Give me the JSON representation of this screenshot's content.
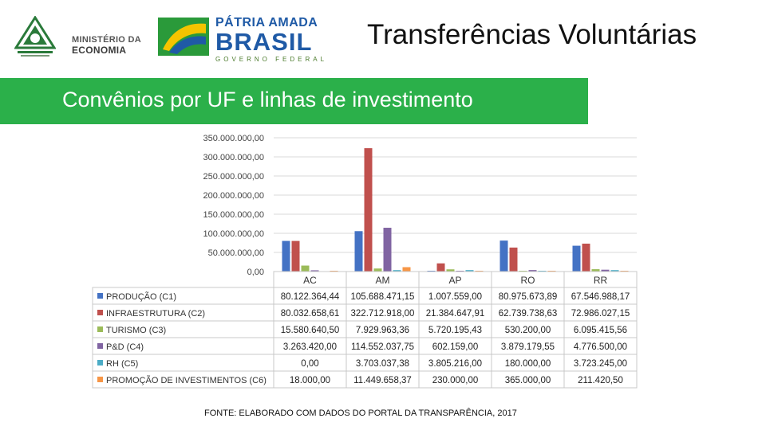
{
  "header": {
    "ministry_line1": "MINISTÉRIO DA",
    "ministry_line2": "ECONOMIA",
    "gov_line1": "PÁTRIA AMADA",
    "gov_line2": "BRASIL",
    "gov_line3": "GOVERNO FEDERAL",
    "title": "Transferências Voluntárias"
  },
  "banner": {
    "text": "Convênios por UF e linhas de investimento"
  },
  "colors": {
    "banner": "#2bb04a",
    "series": [
      "#4472c4",
      "#c0504d",
      "#9bbb59",
      "#8064a2",
      "#4bacc6",
      "#f79646"
    ]
  },
  "chart_data": {
    "type": "bar",
    "categories": [
      "AC",
      "AM",
      "AP",
      "RO",
      "RR"
    ],
    "ylim": [
      0,
      350000000
    ],
    "yticks": [
      "0,00",
      "50.000.000,00",
      "100.000.000,00",
      "150.000.000,00",
      "200.000.000,00",
      "250.000.000,00",
      "300.000.000,00",
      "350.000.000,00"
    ],
    "grid": true,
    "legend": "data-table",
    "series": [
      {
        "name": "PRODUÇÃO (C1)",
        "values": [
          80122364.44,
          105688471.15,
          1007559.0,
          80975673.89,
          67546988.17
        ],
        "labels": [
          "80.122.364,44",
          "105.688.471,15",
          "1.007.559,00",
          "80.975.673,89",
          "67.546.988,17"
        ]
      },
      {
        "name": "INFRAESTRUTURA (C2)",
        "values": [
          80032658.61,
          322712918.0,
          21384647.91,
          62739738.63,
          72986027.15
        ],
        "labels": [
          "80.032.658,61",
          "322.712.918,00",
          "21.384.647,91",
          "62.739.738,63",
          "72.986.027,15"
        ]
      },
      {
        "name": "TURISMO (C3)",
        "values": [
          15580640.5,
          7929963.36,
          5720195.43,
          530200.0,
          6095415.56
        ],
        "labels": [
          "15.580.640,50",
          "7.929.963,36",
          "5.720.195,43",
          "530.200,00",
          "6.095.415,56"
        ]
      },
      {
        "name": "P&D (C4)",
        "values": [
          3263420.0,
          114552037.75,
          602159.0,
          3879179.55,
          4776500.0
        ],
        "labels": [
          "3.263.420,00",
          "114.552.037,75",
          "602.159,00",
          "3.879.179,55",
          "4.776.500,00"
        ]
      },
      {
        "name": "RH (C5)",
        "values": [
          0.0,
          3703037.38,
          3805216.0,
          180000.0,
          3723245.0
        ],
        "labels": [
          "0,00",
          "3.703.037,38",
          "3.805.216,00",
          "180.000,00",
          "3.723.245,00"
        ]
      },
      {
        "name": "PROMOÇÃO DE INVESTIMENTOS (C6)",
        "values": [
          18000.0,
          11449658.37,
          230000.0,
          365000.0,
          211420.5
        ],
        "labels": [
          "18.000,00",
          "11.449.658,37",
          "230.000,00",
          "365.000,00",
          "211.420,50"
        ]
      }
    ]
  },
  "source": {
    "text": "FONTE: ELABORADO COM DADOS DO PORTAL DA TRANSPARÊNCIA, 2017"
  }
}
